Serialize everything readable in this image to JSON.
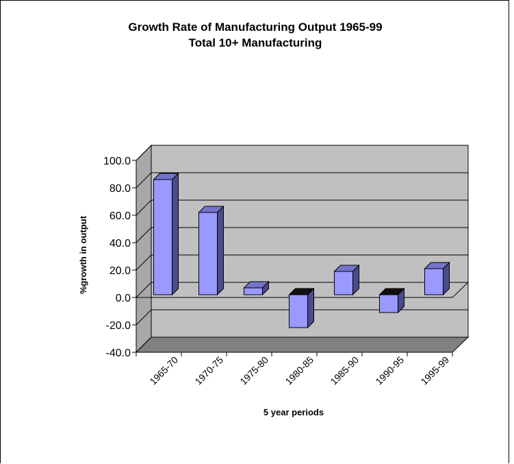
{
  "chart_data": {
    "type": "bar",
    "title": "Growth Rate of Manufacturing Output 1965-99",
    "subtitle": "Total 10+ Manufacturing",
    "xlabel": "5 year periods",
    "ylabel": "%growth in output",
    "categories": [
      "1965-70",
      "1970-75",
      "1975-80",
      "1980-85",
      "1985-90",
      "1990-95",
      "1995-99"
    ],
    "values": [
      84.0,
      60.0,
      5.0,
      -24.0,
      17.0,
      -13.0,
      19.0
    ],
    "ylim": [
      -40,
      100
    ],
    "yticks": [
      "100.0",
      "80.0",
      "60.0",
      "40.0",
      "20.0",
      "0.0",
      "-20.0",
      "-40.0"
    ],
    "grid": true,
    "legend": "none",
    "colors": {
      "bar_front": "#9999ff",
      "bar_side": "#4a4a8c",
      "bar_top": "#7373cc",
      "wall": "#c0c0c0",
      "floor": "#808080"
    }
  }
}
